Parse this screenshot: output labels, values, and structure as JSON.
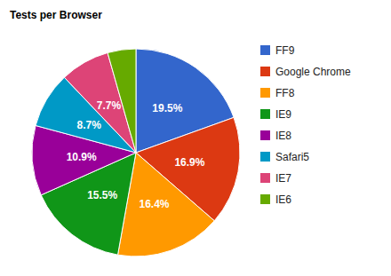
{
  "chart_data": {
    "type": "pie",
    "title": "Tests per Browser",
    "categories": [
      "FF9",
      "Google Chrome",
      "FF8",
      "IE9",
      "IE8",
      "Safari5",
      "IE7",
      "IE6"
    ],
    "values": [
      19.5,
      16.9,
      16.4,
      15.5,
      10.9,
      8.7,
      7.7,
      4.4
    ],
    "value_labels": [
      "19.5%",
      "16.9%",
      "16.4%",
      "15.5%",
      "10.9%",
      "8.7%",
      "7.7%",
      null
    ],
    "colors": [
      "#3366cc",
      "#dc3912",
      "#ff9900",
      "#109618",
      "#990099",
      "#0099c6",
      "#dd4477",
      "#66aa00"
    ],
    "data_labels": true,
    "legend": "right"
  }
}
